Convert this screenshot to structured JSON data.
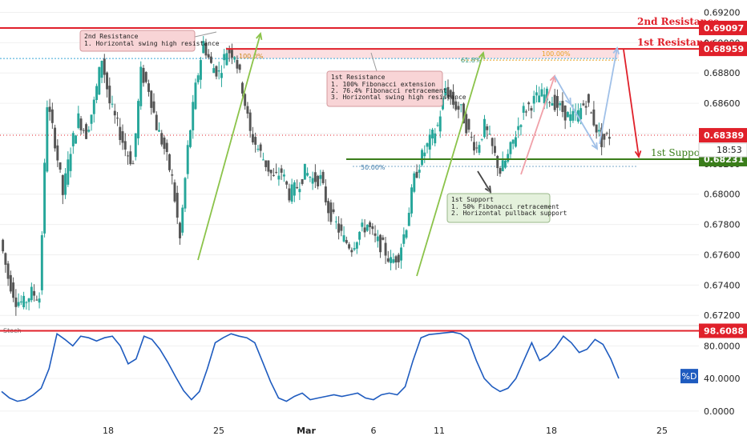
{
  "chart_data": [
    {
      "type": "candlestick",
      "ylim": [
        0.6718,
        0.6925
      ],
      "y_ticks": [
        "0.69200",
        "0.69000",
        "0.68800",
        "0.68600",
        "0.68400",
        "0.68200",
        "0.68000",
        "0.67800",
        "0.67600",
        "0.67400",
        "0.67200"
      ],
      "y_tick_values": [
        0.692,
        0.69,
        0.688,
        0.686,
        0.684,
        0.682,
        0.68,
        0.678,
        0.676,
        0.674,
        0.672
      ],
      "x_ticks": [
        "18",
        "25",
        "Mar",
        "6",
        "11",
        "18",
        "25"
      ],
      "price_path": [
        0.677,
        0.6745,
        0.673,
        0.6728,
        0.6735,
        0.6732,
        0.686,
        0.6835,
        0.68,
        0.683,
        0.685,
        0.684,
        0.686,
        0.689,
        0.686,
        0.6845,
        0.683,
        0.682,
        0.688,
        0.687,
        0.6845,
        0.683,
        0.681,
        0.677,
        0.683,
        0.687,
        0.69,
        0.6885,
        0.688,
        0.6895,
        0.6893,
        0.687,
        0.684,
        0.683,
        0.682,
        0.681,
        0.6815,
        0.68,
        0.6805,
        0.6815,
        0.681,
        0.681,
        0.679,
        0.678,
        0.677,
        0.6765,
        0.6775,
        0.678,
        0.677,
        0.6765,
        0.6755,
        0.676,
        0.678,
        0.681,
        0.6825,
        0.6835,
        0.6845,
        0.687,
        0.686,
        0.6855,
        0.684,
        0.683,
        0.6845,
        0.683,
        0.6815,
        0.6825,
        0.684,
        0.6855,
        0.686,
        0.6865,
        0.6865,
        0.686,
        0.6855,
        0.685,
        0.6853,
        0.6862,
        0.6848,
        0.6835,
        0.6839
      ],
      "levels": [
        {
          "name": "2nd Resistance",
          "value_label": "0.69097",
          "value": 0.69097,
          "color": "#e0202a"
        },
        {
          "name": "1st Resistance",
          "value_label": "0.68959",
          "value": 0.68959,
          "color": "#e0202a"
        },
        {
          "name": "1st Support",
          "value_label": "0.68231",
          "value": 0.68231,
          "color": "#3a7d1a"
        }
      ],
      "current_price": {
        "label": "0.68389",
        "value": 0.68389,
        "countdown": "18:53",
        "color": "#e0202a"
      },
      "fib_labels": [
        "100.0%",
        "61.8%",
        "100.00%",
        "50.00%"
      ],
      "annotations": [
        {
          "title": "2nd Resistance",
          "lines": [
            "1. Horizontal swing high resistance"
          ]
        },
        {
          "title": "1st Resistance",
          "lines": [
            "1. 100% Fibonacci extension",
            "2. 76.4% Fibonacci retracement",
            "3. Horizontal swing high resistance"
          ]
        },
        {
          "title": "1st Support",
          "lines": [
            "1. 50% Fibonacci retracement",
            "2. Horizontal pullback support"
          ]
        }
      ]
    },
    {
      "type": "line",
      "name": "Stoch",
      "ylim": [
        -10,
        104
      ],
      "y_ticks": [
        "80.0000",
        "40.0000",
        "0.0000"
      ],
      "y_tick_values": [
        80,
        40,
        0
      ],
      "series": [
        {
          "name": "%D",
          "values": [
            24,
            16,
            12,
            14,
            20,
            28,
            52,
            95,
            88,
            80,
            92,
            90,
            86,
            90,
            92,
            80,
            58,
            64,
            92,
            88,
            76,
            60,
            42,
            25,
            14,
            24,
            52,
            84,
            90,
            95,
            92,
            90,
            84,
            60,
            36,
            16,
            12,
            18,
            22,
            14,
            16,
            18,
            20,
            18,
            20,
            22,
            16,
            14,
            20,
            22,
            20,
            30,
            62,
            90,
            94,
            95,
            96,
            97,
            95,
            88,
            62,
            40,
            30,
            24,
            28,
            40,
            62,
            84,
            62,
            68,
            78,
            92,
            84,
            72,
            76,
            88,
            82,
            64,
            40
          ]
        }
      ],
      "level_line": {
        "label": "98.6088",
        "value": 98.6088,
        "color": "#e0202a"
      },
      "series_tag": "%D"
    }
  ],
  "colors": {
    "up": "#26a69a",
    "down": "#555555",
    "grid": "#f0f0f0",
    "line_blue": "#1e5bbf",
    "red": "#e0202a",
    "green": "#3a7d1a"
  }
}
